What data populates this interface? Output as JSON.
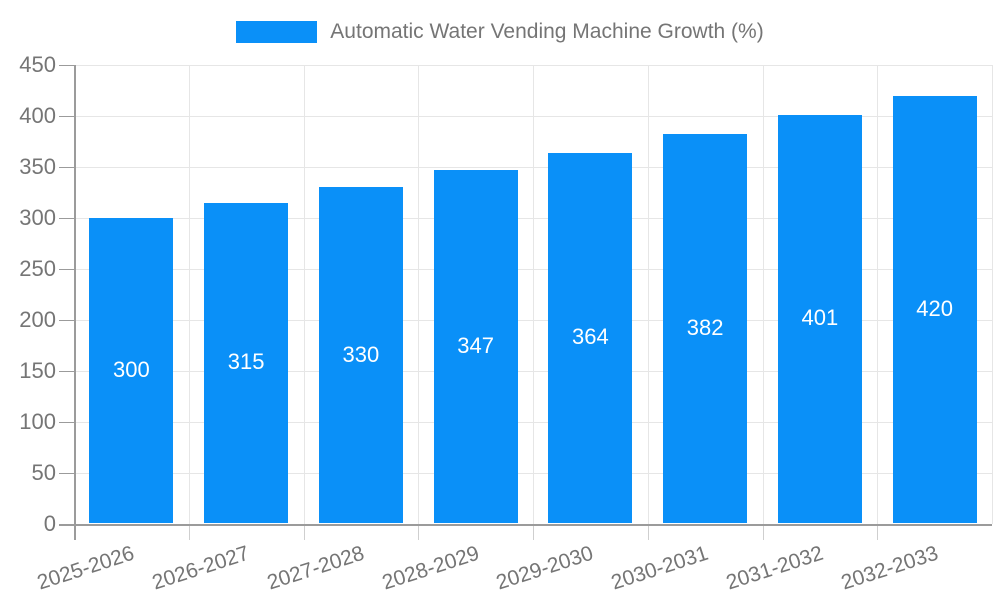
{
  "legend": {
    "label": "Automatic Water Vending Machine Growth (%)"
  },
  "chart_data": {
    "type": "bar",
    "title": "Automatic Water Vending Machine Growth (%)",
    "categories": [
      "2025-2026",
      "2026-2027",
      "2027-2028",
      "2028-2029",
      "2029-2030",
      "2030-2031",
      "2031-2032",
      "2032-2033"
    ],
    "values": [
      300,
      315,
      330,
      347,
      364,
      382,
      401,
      420
    ],
    "value_labels": [
      "300",
      "315",
      "330",
      "347",
      "364",
      "382",
      "401",
      "420"
    ],
    "xlabel": "",
    "ylabel": "",
    "ylim": [
      0,
      450
    ],
    "ytick_step": 50,
    "yticks": [
      0,
      50,
      100,
      150,
      200,
      250,
      300,
      350,
      400,
      450
    ],
    "grid": true,
    "legend_position": "top",
    "bar_color": "#0a90f8",
    "value_label_color": "#ffffff",
    "grid_color": "#e6e6e6",
    "axis_color": "#9b9b9b",
    "tick_label_color": "#757575"
  }
}
